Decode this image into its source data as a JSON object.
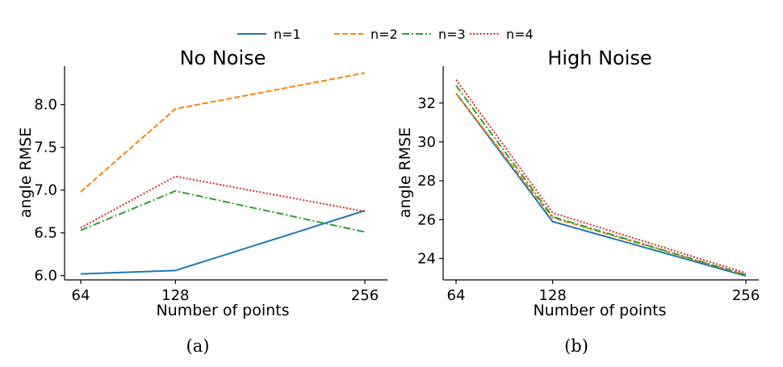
{
  "legend": [
    {
      "label": "n=1",
      "color": "#1f77b4",
      "dash": "solid"
    },
    {
      "label": "n=2",
      "color": "#ff7f0e",
      "dash": "dashed"
    },
    {
      "label": "n=3",
      "color": "#2ca02c",
      "dash": "dashdot"
    },
    {
      "label": "n=4",
      "color": "#d62728",
      "dash": "dotted"
    }
  ],
  "chart_data": [
    {
      "type": "line",
      "title": "No Noise",
      "xlabel": "Number of points",
      "ylabel": "angle RMSE",
      "panel_label": "(a)",
      "x": [
        64,
        128,
        256
      ],
      "xticks": [
        "64",
        "128",
        "256"
      ],
      "ylim": [
        5.95,
        8.45
      ],
      "yticks": [
        6.0,
        6.5,
        7.0,
        7.5,
        8.0
      ],
      "ytick_labels": [
        "6.0",
        "6.5",
        "7.0",
        "7.5",
        "8.0"
      ],
      "series": [
        {
          "name": "n=1",
          "values": [
            6.02,
            6.06,
            6.76
          ]
        },
        {
          "name": "n=2",
          "values": [
            6.98,
            7.95,
            8.37
          ]
        },
        {
          "name": "n=3",
          "values": [
            6.53,
            6.99,
            6.51
          ]
        },
        {
          "name": "n=4",
          "values": [
            6.56,
            7.16,
            6.75
          ]
        }
      ]
    },
    {
      "type": "line",
      "title": "High Noise",
      "xlabel": "Number of points",
      "ylabel": "angle RMSE",
      "panel_label": "(b)",
      "x": [
        64,
        128,
        256
      ],
      "xticks": [
        "64",
        "128",
        "256"
      ],
      "ylim": [
        22.9,
        33.9
      ],
      "yticks": [
        24,
        26,
        28,
        30,
        32
      ],
      "ytick_labels": [
        "24",
        "26",
        "28",
        "30",
        "32"
      ],
      "series": [
        {
          "name": "n=1",
          "values": [
            32.5,
            25.9,
            23.1
          ]
        },
        {
          "name": "n=2",
          "values": [
            32.5,
            26.1,
            23.15
          ]
        },
        {
          "name": "n=3",
          "values": [
            32.9,
            26.15,
            23.15
          ]
        },
        {
          "name": "n=4",
          "values": [
            33.2,
            26.35,
            23.25
          ]
        }
      ]
    }
  ]
}
